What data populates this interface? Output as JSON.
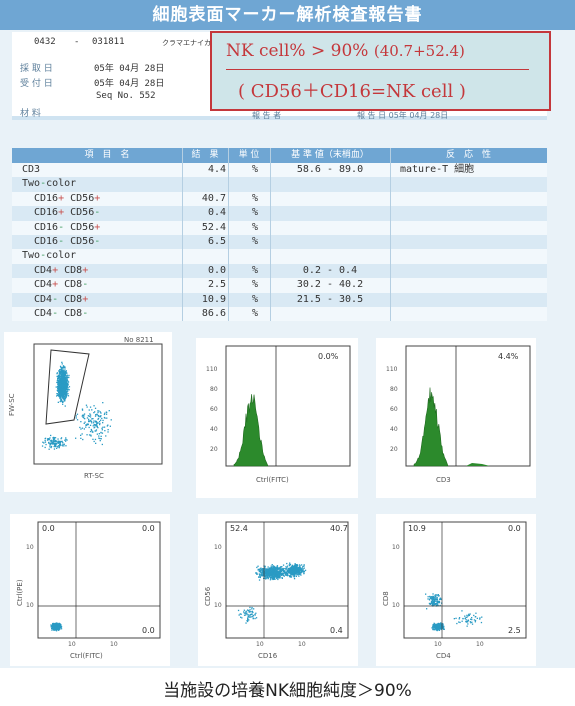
{
  "report": {
    "title": "細胞表面マーカー解析検査報告書",
    "id_left": "0432",
    "id_sep": "-",
    "id_right": "031811",
    "name": "クラマエナイカク",
    "lbl_collect": "採 取 日",
    "lbl_receive": "受 付 日",
    "lbl_material": "材 料",
    "collect_date": "05年 04月 28日",
    "receive_date": "05年 04月 28日",
    "seq": "Seq No. 552",
    "under_box_left": "報 告 者",
    "under_box_right": "報 告 日   05年 04月 28日"
  },
  "annotation": {
    "line1_main": "NK cell% > 90%",
    "line1_paren": "(40.7+52.4)",
    "line2": "( CD56＋CD16=NK cell )"
  },
  "table": {
    "headers": [
      "項　目　名",
      "結　果",
      "単 位",
      "基 準 値（末梢血）",
      "反　応　性"
    ],
    "rows": [
      {
        "name": "CD3",
        "result": "4.4",
        "unit": "%",
        "ref": "58.6 - 89.0",
        "react": "mature-T 細胞"
      },
      {
        "name": "Two-color",
        "result": "",
        "unit": "",
        "ref": "",
        "react": ""
      },
      {
        "name": "CD16+ CD56+",
        "result": "40.7",
        "unit": "%",
        "ref": "",
        "react": ""
      },
      {
        "name": "CD16+ CD56-",
        "result": "0.4",
        "unit": "%",
        "ref": "",
        "react": ""
      },
      {
        "name": "CD16- CD56+",
        "result": "52.4",
        "unit": "%",
        "ref": "",
        "react": ""
      },
      {
        "name": "CD16- CD56-",
        "result": "6.5",
        "unit": "%",
        "ref": "",
        "react": ""
      },
      {
        "name": "Two-color",
        "result": "",
        "unit": "",
        "ref": "",
        "react": ""
      },
      {
        "name": "CD4+ CD8+",
        "result": "0.0",
        "unit": "%",
        "ref": "0.2 - 0.4",
        "react": ""
      },
      {
        "name": "CD4+ CD8-",
        "result": "2.5",
        "unit": "%",
        "ref": "30.2 - 40.2",
        "react": ""
      },
      {
        "name": "CD4- CD8+",
        "result": "10.9",
        "unit": "%",
        "ref": "21.5 - 30.5",
        "react": ""
      },
      {
        "name": "CD4- CD8-",
        "result": "86.6",
        "unit": "%",
        "ref": "",
        "react": ""
      }
    ]
  },
  "plots": {
    "scatter": {
      "no_label": "No 8211",
      "ylabel": "FW-SC",
      "xlabel": "RT-SC"
    },
    "hist1": {
      "pct": "0.0%",
      "xlabel": "Ctrl(FITC)",
      "yt_top": "110",
      "yt_mid": "80",
      "yt_2": "60",
      "yt_3": "40",
      "yt_4": "20"
    },
    "hist2": {
      "pct": "4.4%",
      "xlabel": "CD3",
      "yt_top": "110",
      "yt_mid": "80",
      "yt_2": "60",
      "yt_3": "40",
      "yt_4": "20"
    },
    "dot1": {
      "xlabel": "Ctrl(FITC)",
      "ylabel": "Ctrl(PE)",
      "ul": "0.0",
      "ur": "0.0",
      "ll": "",
      "lr": "0.0"
    },
    "dot2": {
      "xlabel": "CD16",
      "ylabel": "CD56",
      "ul": "52.4",
      "ur": "40.7",
      "ll": "",
      "lr": "0.4"
    },
    "dot3": {
      "xlabel": "CD4",
      "ylabel": "CD8",
      "ul": "10.9",
      "ur": "0.0",
      "ll": "",
      "lr": "2.5"
    },
    "ticks": {
      "t1": "10",
      "t2": "10",
      "t3": "10",
      "t4": "10"
    }
  },
  "caption": "当施設の培養NK細胞純度＞90%",
  "colors": {
    "banner": "#6fa6d3",
    "annotation_red": "#c4373b",
    "annotation_bg": "#cfe5e9",
    "dots": "#2a9bc4",
    "hist": "#2c8a2c"
  }
}
